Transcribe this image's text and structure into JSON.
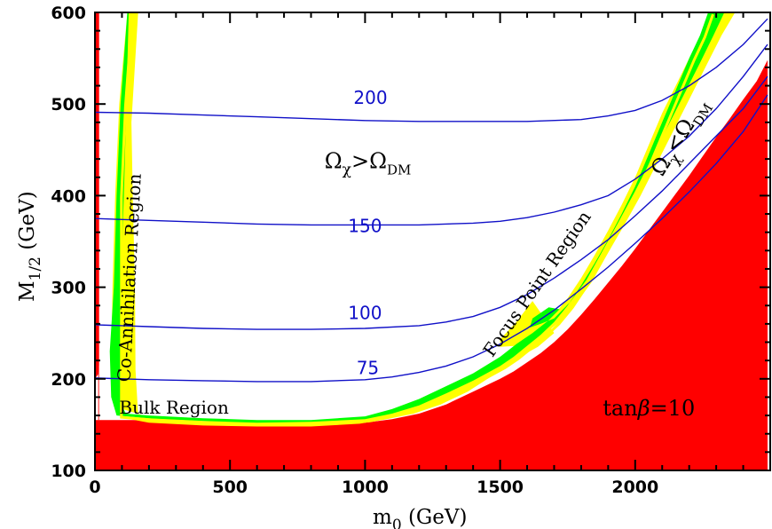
{
  "chart_data": {
    "type": "area",
    "xlabel_main": "m",
    "xlabel_sub": "0",
    "xlabel_unit": "(GeV)",
    "ylabel_main": "M",
    "ylabel_sub": "1/2",
    "ylabel_unit": "(GeV)",
    "xlim": [
      0,
      2500
    ],
    "ylim": [
      100,
      600
    ],
    "xticks": [
      "0",
      "500",
      "1000",
      "1500",
      "2000"
    ],
    "xtick_values": [
      0,
      500,
      1000,
      1500,
      2000
    ],
    "yticks": [
      "100",
      "200",
      "300",
      "400",
      "500",
      "600"
    ],
    "ytick_values": [
      100,
      200,
      300,
      400,
      500,
      600
    ],
    "colors": {
      "excluded": "#ff0000",
      "cosmo_band": "#ffff00",
      "wmap_band": "#00ff00",
      "contours": "#1010c8",
      "frame": "#000000"
    },
    "excluded_regions": [
      {
        "points": [
          [
            0,
            600
          ],
          [
            0,
            220
          ],
          [
            12,
            215
          ],
          [
            12,
            155
          ],
          [
            15,
            155
          ],
          [
            15,
            600
          ],
          [
            112,
            600
          ],
          [
            112,
            600
          ],
          [
            15,
            600
          ]
        ]
      },
      {
        "points": [
          [
            0,
            155
          ],
          [
            200,
            155
          ],
          [
            400,
            152
          ],
          [
            600,
            150
          ],
          [
            800,
            150
          ],
          [
            1000,
            152
          ],
          [
            1100,
            156
          ],
          [
            1200,
            162
          ],
          [
            1300,
            172
          ],
          [
            1400,
            186
          ],
          [
            1500,
            200
          ],
          [
            1550,
            208
          ],
          [
            1600,
            218
          ],
          [
            1650,
            228
          ],
          [
            1700,
            240
          ],
          [
            1750,
            254
          ],
          [
            1800,
            270
          ],
          [
            1850,
            287
          ],
          [
            1900,
            305
          ],
          [
            1950,
            323
          ],
          [
            2000,
            342
          ],
          [
            2050,
            362
          ],
          [
            2100,
            382
          ],
          [
            2150,
            402
          ],
          [
            2200,
            422
          ],
          [
            2250,
            443
          ],
          [
            2300,
            464
          ],
          [
            2350,
            484
          ],
          [
            2400,
            505
          ],
          [
            2450,
            525
          ],
          [
            2490,
            548
          ],
          [
            2490,
            100
          ],
          [
            0,
            100
          ]
        ]
      },
      {
        "points": [
          [
            0,
            600
          ],
          [
            0,
            200
          ],
          [
            12,
            205
          ],
          [
            15,
            215
          ],
          [
            15,
            600
          ],
          [
            112,
            600
          ]
        ]
      }
    ],
    "cosmo_band": {
      "points": [
        [
          120,
          600
        ],
        [
          90,
          500
        ],
        [
          75,
          400
        ],
        [
          65,
          300
        ],
        [
          60,
          220
        ],
        [
          70,
          170
        ],
        [
          200,
          158
        ],
        [
          400,
          154
        ],
        [
          600,
          153
        ],
        [
          800,
          154
        ],
        [
          1000,
          158
        ],
        [
          1100,
          164
        ],
        [
          1200,
          174
        ],
        [
          1300,
          188
        ],
        [
          1400,
          202
        ],
        [
          1500,
          220
        ],
        [
          1550,
          232
        ],
        [
          1600,
          243
        ],
        [
          1650,
          256
        ],
        [
          1700,
          270
        ],
        [
          1750,
          288
        ],
        [
          1800,
          310
        ],
        [
          1850,
          335
        ],
        [
          1900,
          362
        ],
        [
          1950,
          390
        ],
        [
          2000,
          420
        ],
        [
          2050,
          455
        ],
        [
          2100,
          490
        ],
        [
          2150,
          520
        ],
        [
          2200,
          550
        ],
        [
          2250,
          580
        ],
        [
          2280,
          600
        ],
        [
          2370,
          600
        ],
        [
          2320,
          575
        ],
        [
          2260,
          540
        ],
        [
          2200,
          505
        ],
        [
          2140,
          470
        ],
        [
          2080,
          435
        ],
        [
          2020,
          400
        ],
        [
          1960,
          368
        ],
        [
          1900,
          338
        ],
        [
          1840,
          306
        ],
        [
          1780,
          282
        ],
        [
          1720,
          262
        ],
        [
          1660,
          248
        ],
        [
          1620,
          240
        ],
        [
          1560,
          236
        ],
        [
          1500,
          235
        ],
        [
          1500,
          243
        ],
        [
          1560,
          262
        ],
        [
          1620,
          285
        ],
        [
          1660,
          268
        ],
        [
          1700,
          250
        ],
        [
          1640,
          235
        ],
        [
          1560,
          222
        ],
        [
          1480,
          205
        ],
        [
          1380,
          186
        ],
        [
          1280,
          172
        ],
        [
          1180,
          162
        ],
        [
          1080,
          156
        ],
        [
          980,
          151
        ],
        [
          800,
          148
        ],
        [
          600,
          148
        ],
        [
          400,
          149
        ],
        [
          200,
          152
        ],
        [
          130,
          156
        ],
        [
          160,
          160
        ],
        [
          150,
          210
        ],
        [
          148,
          300
        ],
        [
          140,
          400
        ],
        [
          135,
          480
        ],
        [
          160,
          600
        ]
      ]
    },
    "wmap_band": {
      "points": [
        [
          120,
          600
        ],
        [
          95,
          500
        ],
        [
          80,
          400
        ],
        [
          70,
          300
        ],
        [
          55,
          230
        ],
        [
          60,
          180
        ],
        [
          80,
          160
        ],
        [
          200,
          157
        ],
        [
          400,
          154
        ],
        [
          600,
          152
        ],
        [
          800,
          153
        ],
        [
          1000,
          156
        ],
        [
          1100,
          162
        ],
        [
          1200,
          171
        ],
        [
          1300,
          184
        ],
        [
          1400,
          198
        ],
        [
          1500,
          214
        ],
        [
          1550,
          224
        ],
        [
          1600,
          236
        ],
        [
          1650,
          248
        ],
        [
          1700,
          262
        ],
        [
          1750,
          280
        ],
        [
          1800,
          302
        ],
        [
          1850,
          326
        ],
        [
          1900,
          352
        ],
        [
          1950,
          380
        ],
        [
          2000,
          410
        ],
        [
          2050,
          445
        ],
        [
          2100,
          480
        ],
        [
          2150,
          515
        ],
        [
          2200,
          550
        ],
        [
          2240,
          575
        ],
        [
          2270,
          600
        ]
      ]
    },
    "wmap_band_lower": [
      [
        2330,
        600
      ],
      [
        2290,
        575
      ],
      [
        2240,
        545
      ],
      [
        2180,
        510
      ],
      [
        2120,
        475
      ],
      [
        2060,
        440
      ],
      [
        2000,
        405
      ],
      [
        1940,
        372
      ],
      [
        1880,
        340
      ],
      [
        1820,
        308
      ],
      [
        1760,
        284
      ],
      [
        1700,
        266
      ],
      [
        1650,
        260
      ],
      [
        1610,
        256
      ],
      [
        1620,
        266
      ],
      [
        1680,
        278
      ],
      [
        1720,
        276
      ],
      [
        1680,
        264
      ],
      [
        1620,
        250
      ],
      [
        1560,
        238
      ],
      [
        1500,
        224
      ],
      [
        1400,
        206
      ],
      [
        1300,
        192
      ],
      [
        1200,
        178
      ],
      [
        1100,
        167
      ],
      [
        1000,
        159
      ],
      [
        800,
        155
      ],
      [
        600,
        155
      ],
      [
        400,
        157
      ],
      [
        200,
        160
      ],
      [
        115,
        162
      ],
      [
        100,
        170
      ],
      [
        95,
        250
      ],
      [
        100,
        330
      ],
      [
        110,
        430
      ],
      [
        118,
        520
      ],
      [
        125,
        600
      ]
    ],
    "series": [
      {
        "name": "200",
        "x": [
          0,
          200,
          400,
          600,
          800,
          1000,
          1200,
          1400,
          1600,
          1800,
          1900,
          2000,
          2100,
          2200,
          2300,
          2400,
          2490
        ],
        "y": [
          491,
          490,
          488,
          486,
          484,
          482,
          481,
          481,
          481,
          483,
          487,
          493,
          504,
          520,
          540,
          565,
          593
        ]
      },
      {
        "name": "150",
        "x": [
          0,
          200,
          400,
          600,
          800,
          1000,
          1200,
          1400,
          1500,
          1600,
          1700,
          1800,
          1900,
          2000,
          2100,
          2200,
          2300,
          2400,
          2490
        ],
        "y": [
          375,
          373,
          371,
          369,
          368,
          368,
          368,
          370,
          372,
          376,
          382,
          390,
          400,
          418,
          440,
          465,
          495,
          530,
          565
        ]
      },
      {
        "name": "100",
        "x": [
          0,
          200,
          400,
          600,
          800,
          1000,
          1200,
          1300,
          1400,
          1500,
          1600,
          1700,
          1800,
          1900,
          2000,
          2100,
          2200,
          2300,
          2400,
          2490
        ],
        "y": [
          259,
          257,
          255,
          254,
          254,
          255,
          258,
          262,
          268,
          278,
          292,
          310,
          330,
          352,
          378,
          405,
          435,
          465,
          495,
          530
        ]
      },
      {
        "name": "75",
        "x": [
          0,
          200,
          400,
          600,
          800,
          1000,
          1100,
          1200,
          1300,
          1400,
          1500,
          1600,
          1700,
          1800,
          1900,
          2000,
          2100,
          2200,
          2300,
          2400,
          2490
        ],
        "y": [
          201,
          199,
          198,
          197,
          197,
          199,
          202,
          207,
          214,
          224,
          238,
          255,
          275,
          298,
          322,
          348,
          375,
          404,
          435,
          470,
          510
        ]
      }
    ],
    "contour_labels": [
      {
        "text": "200",
        "x": 1020,
        "y": 500
      },
      {
        "text": "150",
        "x": 1000,
        "y": 360
      },
      {
        "text": "100",
        "x": 1000,
        "y": 265
      },
      {
        "text": "75",
        "x": 1010,
        "y": 205
      }
    ],
    "region_labels": [
      {
        "text": "Co-Annihilation Region",
        "x": 150,
        "y": 310,
        "angle": -87
      },
      {
        "text": "Bulk Region",
        "x": 90,
        "y": 162,
        "angle": 0
      },
      {
        "text": "Focus Point Region",
        "x": 1655,
        "y": 300,
        "angle": -55
      }
    ],
    "omega_label_upper": {
      "main": "Ω",
      "sub1": "χ",
      "rel": ">",
      "main2": "Ω",
      "sub2": "DM",
      "x": 850,
      "y": 430
    },
    "omega_label_lower": {
      "main": "Ω",
      "sub1": "χ",
      "rel": "<",
      "main2": "Ω",
      "sub2": "DM",
      "x": 2100,
      "y": 420,
      "angle": -58
    },
    "annotation": {
      "text_pre": "tan",
      "text_beta": "β",
      "text_post": "=10",
      "x": 1880,
      "y": 160
    }
  }
}
